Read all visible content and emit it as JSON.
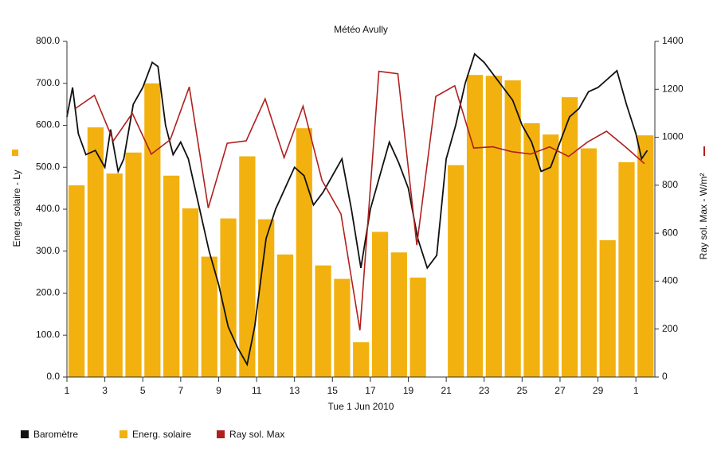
{
  "chart_data": {
    "type": "bar",
    "title": "Météo Avully",
    "xlabel": "Tue 1 Jun 2010",
    "ylabel": "Energ. solaire - Ly",
    "y2label": "Ray sol. Max - W/m²",
    "x": [
      1,
      2,
      3,
      4,
      5,
      6,
      7,
      8,
      9,
      10,
      11,
      12,
      13,
      14,
      15,
      16,
      17,
      18,
      19,
      20,
      21,
      22,
      23,
      24,
      25,
      26,
      27,
      28,
      29,
      30,
      31
    ],
    "xlim": [
      1,
      32
    ],
    "xticks": [
      1,
      3,
      5,
      7,
      9,
      11,
      13,
      15,
      17,
      19,
      21,
      23,
      25,
      27,
      29,
      {
        "value": 31,
        "label": "1"
      }
    ],
    "ylim": [
      0,
      800
    ],
    "yticks": [
      {
        "value": 0,
        "label": "0.0"
      },
      {
        "value": 100,
        "label": "100.0"
      },
      {
        "value": 200,
        "label": "200.0"
      },
      {
        "value": 300,
        "label": "300.0"
      },
      {
        "value": 400,
        "label": "400.0"
      },
      {
        "value": 500,
        "label": "500.0"
      },
      {
        "value": 600,
        "label": "600.0"
      },
      {
        "value": 700,
        "label": "700.0"
      },
      {
        "value": 800,
        "label": "800.0"
      }
    ],
    "y2lim": [
      0,
      1400
    ],
    "y2ticks": [
      0,
      200,
      400,
      600,
      800,
      1000,
      1200,
      1400
    ],
    "series": [
      {
        "name": "Baromètre",
        "type": "line",
        "color": "#111111",
        "x": [
          1.0,
          1.3,
          1.6,
          2.0,
          2.5,
          3.0,
          3.3,
          3.7,
          4.0,
          4.5,
          5.0,
          5.5,
          5.8,
          6.2,
          6.6,
          7.0,
          7.4,
          8.0,
          8.5,
          9.0,
          9.5,
          10.0,
          10.5,
          10.9,
          11.5,
          12.0,
          12.5,
          13.0,
          13.5,
          14.0,
          14.5,
          15.0,
          15.5,
          16.0,
          16.5,
          17.0,
          17.5,
          18.0,
          18.5,
          19.0,
          19.5,
          20.0,
          20.5,
          21.0,
          21.5,
          22.0,
          22.5,
          23.0,
          23.5,
          24.0,
          24.5,
          25.0,
          25.5,
          26.0,
          26.5,
          27.0,
          27.5,
          28.0,
          28.5,
          29.0,
          29.5,
          30.0,
          30.5,
          31.0,
          31.3,
          31.6
        ],
        "values": [
          620,
          690,
          580,
          530,
          540,
          500,
          590,
          490,
          520,
          650,
          690,
          750,
          740,
          600,
          530,
          560,
          520,
          400,
          300,
          220,
          120,
          70,
          30,
          120,
          330,
          400,
          450,
          500,
          480,
          410,
          440,
          480,
          520,
          400,
          260,
          400,
          480,
          560,
          510,
          450,
          330,
          260,
          290,
          520,
          600,
          700,
          770,
          750,
          720,
          690,
          660,
          600,
          560,
          490,
          500,
          560,
          620,
          640,
          680,
          690,
          710,
          730,
          650,
          580,
          520,
          540
        ]
      },
      {
        "name": "Energ. solaire",
        "type": "bar",
        "color": "#f2b10f",
        "values": [
          457,
          595,
          485,
          535,
          700,
          480,
          402,
          287,
          378,
          526,
          376,
          292,
          593,
          266,
          234,
          83,
          346,
          297,
          237,
          null,
          505,
          720,
          718,
          707,
          605,
          578,
          667,
          545,
          326,
          512,
          576
        ]
      },
      {
        "name": "Ray sol. Max",
        "type": "line",
        "axis": "y2",
        "color": "#b0201e",
        "values": [
          1120,
          1175,
          985,
          1100,
          930,
          990,
          1210,
          705,
          975,
          985,
          1160,
          915,
          1130,
          820,
          680,
          195,
          1275,
          1265,
          550,
          1170,
          1215,
          955,
          960,
          940,
          930,
          960,
          920,
          980,
          1025,
          960,
          890
        ]
      }
    ]
  }
}
